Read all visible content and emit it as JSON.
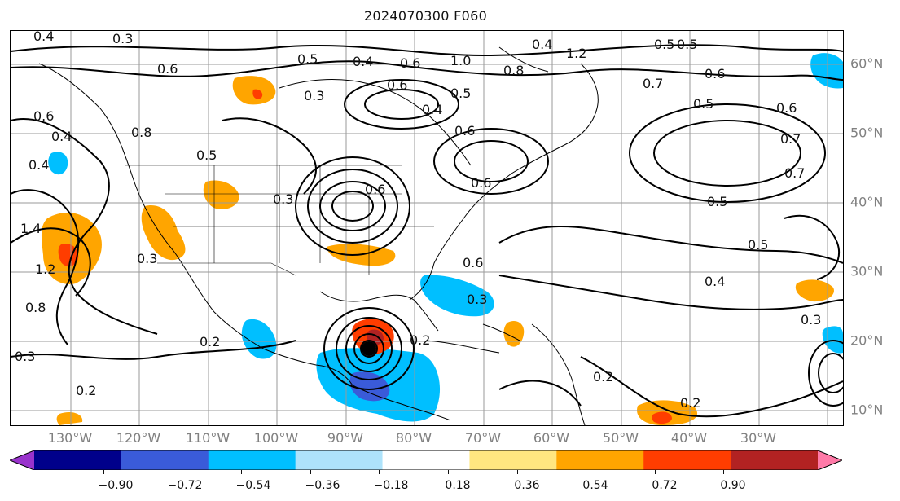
{
  "title": "2024070300 F060",
  "map": {
    "lon_ticks": [
      "130°W",
      "120°W",
      "110°W",
      "100°W",
      "90°W",
      "80°W",
      "70°W",
      "60°W",
      "50°W",
      "40°W",
      "30°W"
    ],
    "lat_ticks": [
      "60°N",
      "50°N",
      "40°N",
      "30°N",
      "20°N",
      "10°N"
    ],
    "contour_labels": [
      "0.4",
      "0.3",
      "0.5",
      "0.4",
      "0.6",
      "1.0",
      "0.4",
      "1.2",
      "0.5",
      "0.5",
      "0.6",
      "0.8",
      "0.7",
      "0.5",
      "0.6",
      "0.3",
      "0.6",
      "0.4",
      "0.5",
      "0.6",
      "0.6",
      "0.8",
      "0.6",
      "0.7",
      "0.4",
      "0.5",
      "0.3",
      "0.6",
      "0.5",
      "1.4",
      "1.2",
      "0.4",
      "0.8",
      "0.3",
      "0.2",
      "0.2",
      "0.6",
      "0.3",
      "0.2",
      "0.4",
      "0.5",
      "0.3",
      "0.2",
      "0.2",
      "0.3",
      "0.7",
      "0.6"
    ]
  },
  "colorbar": {
    "ticks": [
      "−0.90",
      "−0.72",
      "−0.54",
      "−0.36",
      "−0.18",
      "0.18",
      "0.36",
      "0.54",
      "0.72",
      "0.90"
    ],
    "colors": [
      "#9933cc",
      "#00008b",
      "#3a5bd9",
      "#00bfff",
      "#aee3fb",
      "#ffffff",
      "#ffe680",
      "#ffa500",
      "#ff3d00",
      "#b22222",
      "#ff7aa8"
    ],
    "extend": "both"
  }
}
